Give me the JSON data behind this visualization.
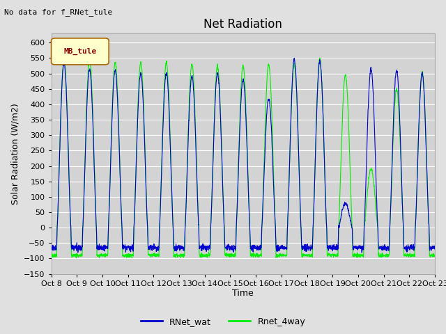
{
  "title": "Net Radiation",
  "ylabel": "Solar Radiation (W/m2)",
  "xlabel": "Time",
  "top_left_text": "No data for f_RNet_tule",
  "legend_box_text": "MB_tule",
  "legend_entries": [
    "RNet_wat",
    "Rnet_4way"
  ],
  "ylim": [
    -150,
    630
  ],
  "yticks": [
    -150,
    -100,
    -50,
    0,
    50,
    100,
    150,
    200,
    250,
    300,
    350,
    400,
    450,
    500,
    550,
    600
  ],
  "xtick_labels": [
    "Oct 8",
    "Oct 9",
    "Oct 10",
    "Oct 11",
    "Oct 12",
    "Oct 13",
    "Oct 14",
    "Oct 15",
    "Oct 16",
    "Oct 17",
    "Oct 18",
    "Oct 19",
    "Oct 20",
    "Oct 21",
    "Oct 22",
    "Oct 23"
  ],
  "n_days": 15,
  "background_color": "#e0e0e0",
  "plot_bg_color": "#d3d3d3",
  "grid_color": "#ffffff",
  "line_color_wat": "#0000cc",
  "line_color_4way": "#00ee00",
  "day_peak_wat": [
    535,
    515,
    510,
    500,
    500,
    490,
    500,
    480,
    420,
    545,
    540,
    80,
    515,
    510,
    500
  ],
  "day_peak_4way": [
    545,
    545,
    535,
    535,
    535,
    530,
    525,
    525,
    530,
    530,
    545,
    495,
    190,
    450,
    505
  ],
  "night_val_wat": -65,
  "night_val_4way": -90,
  "title_fontsize": 12,
  "axis_fontsize": 9,
  "tick_fontsize": 8
}
